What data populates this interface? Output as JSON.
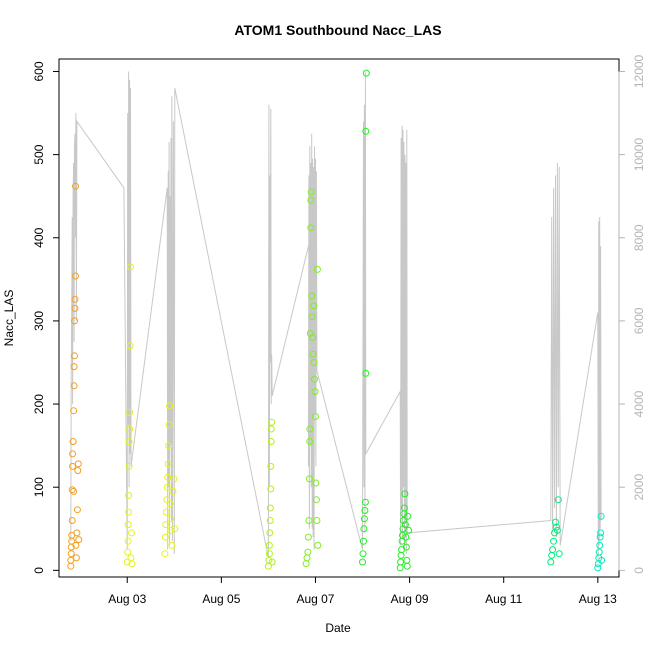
{
  "chart_data": {
    "type": "scatter",
    "title": "ATOM1 Southbound Nacc_LAS",
    "xlabel": "Date",
    "ylabel": "Nacc_LAS",
    "x_unit": "days in August",
    "xlim": [
      1.55,
      13.45
    ],
    "ylim": [
      -8,
      615
    ],
    "y2lim": [
      -160,
      12300
    ],
    "x_ticks": [
      {
        "x": 3,
        "label": "Aug 03"
      },
      {
        "x": 5,
        "label": "Aug 05"
      },
      {
        "x": 7,
        "label": "Aug 07"
      },
      {
        "x": 9,
        "label": "Aug 09"
      },
      {
        "x": 11,
        "label": "Aug 11"
      },
      {
        "x": 13,
        "label": "Aug 13"
      }
    ],
    "y_ticks": [
      0,
      100,
      200,
      300,
      400,
      500,
      600
    ],
    "y2_ticks": [
      0,
      2000,
      4000,
      6000,
      8000,
      10000,
      12000
    ],
    "grid": false,
    "legend": "none",
    "colors": {
      "line": "#c8c8c8",
      "right_axis": "#b4b4b4",
      "groups": [
        "#f5a020",
        "#e6f21e",
        "#b4f01e",
        "#7ef01e",
        "#20f020",
        "#00ee7a",
        "#00eebc"
      ]
    },
    "points": [
      {
        "x": 1.8,
        "y": 5,
        "c": 0
      },
      {
        "x": 1.8,
        "y": 12,
        "c": 0
      },
      {
        "x": 1.81,
        "y": 20,
        "c": 0
      },
      {
        "x": 1.81,
        "y": 28,
        "c": 0
      },
      {
        "x": 1.82,
        "y": 35,
        "c": 0
      },
      {
        "x": 1.82,
        "y": 42,
        "c": 0
      },
      {
        "x": 1.83,
        "y": 60,
        "c": 0
      },
      {
        "x": 1.83,
        "y": 97,
        "c": 0
      },
      {
        "x": 1.84,
        "y": 125,
        "c": 0
      },
      {
        "x": 1.84,
        "y": 140,
        "c": 0
      },
      {
        "x": 1.85,
        "y": 155,
        "c": 0
      },
      {
        "x": 1.86,
        "y": 95,
        "c": 0
      },
      {
        "x": 1.86,
        "y": 192,
        "c": 0
      },
      {
        "x": 1.87,
        "y": 222,
        "c": 0
      },
      {
        "x": 1.87,
        "y": 245,
        "c": 0
      },
      {
        "x": 1.88,
        "y": 258,
        "c": 0
      },
      {
        "x": 1.88,
        "y": 300,
        "c": 0
      },
      {
        "x": 1.89,
        "y": 315,
        "c": 0
      },
      {
        "x": 1.89,
        "y": 326,
        "c": 0
      },
      {
        "x": 1.9,
        "y": 354,
        "c": 0
      },
      {
        "x": 1.9,
        "y": 462,
        "c": 0
      },
      {
        "x": 1.91,
        "y": 30,
        "c": 0
      },
      {
        "x": 1.92,
        "y": 15,
        "c": 0
      },
      {
        "x": 1.93,
        "y": 45,
        "c": 0
      },
      {
        "x": 1.94,
        "y": 73,
        "c": 0
      },
      {
        "x": 1.95,
        "y": 120,
        "c": 0
      },
      {
        "x": 1.96,
        "y": 128,
        "c": 0
      },
      {
        "x": 1.97,
        "y": 37,
        "c": 0
      },
      {
        "x": 3.0,
        "y": 10,
        "c": 1
      },
      {
        "x": 3.01,
        "y": 22,
        "c": 1
      },
      {
        "x": 3.02,
        "y": 35,
        "c": 1
      },
      {
        "x": 3.02,
        "y": 55,
        "c": 1
      },
      {
        "x": 3.03,
        "y": 70,
        "c": 1
      },
      {
        "x": 3.03,
        "y": 90,
        "c": 1
      },
      {
        "x": 3.04,
        "y": 125,
        "c": 1
      },
      {
        "x": 3.04,
        "y": 155,
        "c": 1
      },
      {
        "x": 3.05,
        "y": 170,
        "c": 1
      },
      {
        "x": 3.05,
        "y": 190,
        "c": 1
      },
      {
        "x": 3.06,
        "y": 270,
        "c": 1
      },
      {
        "x": 3.07,
        "y": 365,
        "c": 1
      },
      {
        "x": 3.08,
        "y": 15,
        "c": 1
      },
      {
        "x": 3.09,
        "y": 45,
        "c": 1
      },
      {
        "x": 3.1,
        "y": 8,
        "c": 1
      },
      {
        "x": 3.8,
        "y": 20,
        "c": 1
      },
      {
        "x": 3.81,
        "y": 40,
        "c": 1
      },
      {
        "x": 3.82,
        "y": 55,
        "c": 1
      },
      {
        "x": 3.83,
        "y": 70,
        "c": 1
      },
      {
        "x": 3.84,
        "y": 85,
        "c": 1
      },
      {
        "x": 3.85,
        "y": 100,
        "c": 1
      },
      {
        "x": 3.86,
        "y": 112,
        "c": 1
      },
      {
        "x": 3.87,
        "y": 128,
        "c": 1
      },
      {
        "x": 3.88,
        "y": 150,
        "c": 1
      },
      {
        "x": 3.89,
        "y": 175,
        "c": 1
      },
      {
        "x": 3.9,
        "y": 198,
        "c": 1
      },
      {
        "x": 3.91,
        "y": 80,
        "c": 1
      },
      {
        "x": 3.92,
        "y": 62,
        "c": 1
      },
      {
        "x": 3.93,
        "y": 48,
        "c": 1
      },
      {
        "x": 3.95,
        "y": 30,
        "c": 1
      },
      {
        "x": 3.97,
        "y": 95,
        "c": 1
      },
      {
        "x": 3.99,
        "y": 110,
        "c": 1
      },
      {
        "x": 4.01,
        "y": 50,
        "c": 1
      },
      {
        "x": 6.0,
        "y": 5,
        "c": 2
      },
      {
        "x": 6.01,
        "y": 12,
        "c": 2
      },
      {
        "x": 6.02,
        "y": 20,
        "c": 2
      },
      {
        "x": 6.02,
        "y": 30,
        "c": 2
      },
      {
        "x": 6.03,
        "y": 45,
        "c": 2
      },
      {
        "x": 6.04,
        "y": 60,
        "c": 2
      },
      {
        "x": 6.04,
        "y": 75,
        "c": 2
      },
      {
        "x": 6.05,
        "y": 98,
        "c": 2
      },
      {
        "x": 6.05,
        "y": 125,
        "c": 2
      },
      {
        "x": 6.06,
        "y": 155,
        "c": 2
      },
      {
        "x": 6.06,
        "y": 170,
        "c": 2
      },
      {
        "x": 6.07,
        "y": 178,
        "c": 2
      },
      {
        "x": 6.08,
        "y": 10,
        "c": 2
      },
      {
        "x": 6.8,
        "y": 8,
        "c": 3
      },
      {
        "x": 6.82,
        "y": 15,
        "c": 3
      },
      {
        "x": 6.84,
        "y": 22,
        "c": 3
      },
      {
        "x": 6.85,
        "y": 40,
        "c": 3
      },
      {
        "x": 6.86,
        "y": 60,
        "c": 3
      },
      {
        "x": 6.87,
        "y": 110,
        "c": 3
      },
      {
        "x": 6.88,
        "y": 155,
        "c": 3
      },
      {
        "x": 6.88,
        "y": 170,
        "c": 3
      },
      {
        "x": 6.89,
        "y": 285,
        "c": 3
      },
      {
        "x": 6.9,
        "y": 412,
        "c": 3
      },
      {
        "x": 6.9,
        "y": 445,
        "c": 3
      },
      {
        "x": 6.91,
        "y": 455,
        "c": 3
      },
      {
        "x": 6.92,
        "y": 330,
        "c": 3
      },
      {
        "x": 6.93,
        "y": 305,
        "c": 3
      },
      {
        "x": 6.94,
        "y": 280,
        "c": 3
      },
      {
        "x": 6.95,
        "y": 260,
        "c": 3
      },
      {
        "x": 6.96,
        "y": 318,
        "c": 3
      },
      {
        "x": 6.97,
        "y": 250,
        "c": 3
      },
      {
        "x": 6.98,
        "y": 230,
        "c": 3
      },
      {
        "x": 6.99,
        "y": 215,
        "c": 3
      },
      {
        "x": 7.0,
        "y": 185,
        "c": 3
      },
      {
        "x": 7.01,
        "y": 105,
        "c": 3
      },
      {
        "x": 7.02,
        "y": 85,
        "c": 3
      },
      {
        "x": 7.03,
        "y": 60,
        "c": 3
      },
      {
        "x": 7.04,
        "y": 362,
        "c": 3
      },
      {
        "x": 7.05,
        "y": 30,
        "c": 3
      },
      {
        "x": 8.0,
        "y": 10,
        "c": 4
      },
      {
        "x": 8.01,
        "y": 20,
        "c": 4
      },
      {
        "x": 8.02,
        "y": 35,
        "c": 4
      },
      {
        "x": 8.03,
        "y": 50,
        "c": 4
      },
      {
        "x": 8.04,
        "y": 62,
        "c": 4
      },
      {
        "x": 8.05,
        "y": 72,
        "c": 4
      },
      {
        "x": 8.06,
        "y": 82,
        "c": 4
      },
      {
        "x": 8.07,
        "y": 237,
        "c": 4
      },
      {
        "x": 8.07,
        "y": 528,
        "c": 4
      },
      {
        "x": 8.08,
        "y": 598,
        "c": 4
      },
      {
        "x": 8.8,
        "y": 3,
        "c": 4
      },
      {
        "x": 8.81,
        "y": 10,
        "c": 4
      },
      {
        "x": 8.82,
        "y": 18,
        "c": 4
      },
      {
        "x": 8.83,
        "y": 25,
        "c": 4
      },
      {
        "x": 8.84,
        "y": 35,
        "c": 4
      },
      {
        "x": 8.85,
        "y": 42,
        "c": 4
      },
      {
        "x": 8.86,
        "y": 50,
        "c": 4
      },
      {
        "x": 8.87,
        "y": 60,
        "c": 4
      },
      {
        "x": 8.88,
        "y": 68,
        "c": 4
      },
      {
        "x": 8.89,
        "y": 75,
        "c": 4
      },
      {
        "x": 8.9,
        "y": 92,
        "c": 4
      },
      {
        "x": 8.91,
        "y": 55,
        "c": 4
      },
      {
        "x": 8.92,
        "y": 40,
        "c": 4
      },
      {
        "x": 8.93,
        "y": 28,
        "c": 4
      },
      {
        "x": 8.94,
        "y": 12,
        "c": 4
      },
      {
        "x": 8.95,
        "y": 5,
        "c": 4
      },
      {
        "x": 8.96,
        "y": 65,
        "c": 4
      },
      {
        "x": 8.98,
        "y": 48,
        "c": 4
      },
      {
        "x": 12.0,
        "y": 10,
        "c": 5
      },
      {
        "x": 12.02,
        "y": 18,
        "c": 5
      },
      {
        "x": 12.04,
        "y": 25,
        "c": 5
      },
      {
        "x": 12.06,
        "y": 35,
        "c": 5
      },
      {
        "x": 12.08,
        "y": 45,
        "c": 5
      },
      {
        "x": 12.1,
        "y": 58,
        "c": 5
      },
      {
        "x": 12.12,
        "y": 52,
        "c": 5
      },
      {
        "x": 12.14,
        "y": 48,
        "c": 5
      },
      {
        "x": 12.16,
        "y": 85,
        "c": 5
      },
      {
        "x": 12.18,
        "y": 20,
        "c": 5
      },
      {
        "x": 13.0,
        "y": 3,
        "c": 6
      },
      {
        "x": 13.01,
        "y": 8,
        "c": 6
      },
      {
        "x": 13.02,
        "y": 15,
        "c": 6
      },
      {
        "x": 13.03,
        "y": 22,
        "c": 6
      },
      {
        "x": 13.04,
        "y": 30,
        "c": 6
      },
      {
        "x": 13.05,
        "y": 40,
        "c": 6
      },
      {
        "x": 13.06,
        "y": 45,
        "c": 6
      },
      {
        "x": 13.07,
        "y": 65,
        "c": 6
      },
      {
        "x": 13.08,
        "y": 12,
        "c": 6
      }
    ],
    "line_series": [
      [
        1.8,
        700
      ],
      [
        1.81,
        4800
      ],
      [
        1.82,
        6200
      ],
      [
        1.83,
        8500
      ],
      [
        1.84,
        4000
      ],
      [
        1.85,
        9000
      ],
      [
        1.86,
        9800
      ],
      [
        1.87,
        5500
      ],
      [
        1.88,
        10200
      ],
      [
        1.89,
        10500
      ],
      [
        1.9,
        8000
      ],
      [
        1.91,
        11000
      ],
      [
        1.92,
        6000
      ],
      [
        1.93,
        10800
      ],
      [
        2.93,
        9200
      ],
      [
        3.0,
        500
      ],
      [
        3.01,
        11000
      ],
      [
        3.02,
        3500
      ],
      [
        3.03,
        12000
      ],
      [
        3.04,
        2000
      ],
      [
        3.05,
        11800
      ],
      [
        3.06,
        2800
      ],
      [
        3.07,
        11600
      ],
      [
        3.08,
        2500
      ],
      [
        3.85,
        9200
      ],
      [
        3.86,
        500
      ],
      [
        3.87,
        9600
      ],
      [
        3.88,
        2000
      ],
      [
        3.89,
        10300
      ],
      [
        3.9,
        600
      ],
      [
        3.91,
        9000
      ],
      [
        3.92,
        3000
      ],
      [
        3.93,
        10400
      ],
      [
        3.94,
        1200
      ],
      [
        3.95,
        11400
      ],
      [
        3.96,
        700
      ],
      [
        3.98,
        10800
      ],
      [
        4.0,
        400
      ],
      [
        4.01,
        11600
      ],
      [
        6.0,
        300
      ],
      [
        6.01,
        11200
      ],
      [
        6.02,
        2000
      ],
      [
        6.03,
        9500
      ],
      [
        6.04,
        5000
      ],
      [
        6.05,
        11100
      ],
      [
        6.06,
        4000
      ],
      [
        6.07,
        5200
      ],
      [
        6.08,
        4200
      ],
      [
        7.0,
        8500
      ],
      [
        6.85,
        2500
      ],
      [
        6.86,
        9500
      ],
      [
        6.87,
        1000
      ],
      [
        6.88,
        10200
      ],
      [
        6.89,
        3000
      ],
      [
        6.9,
        9800
      ],
      [
        6.91,
        2000
      ],
      [
        6.92,
        10500
      ],
      [
        6.93,
        1000
      ],
      [
        6.94,
        9900
      ],
      [
        6.95,
        800
      ],
      [
        6.96,
        9700
      ],
      [
        6.97,
        500
      ],
      [
        6.98,
        10200
      ],
      [
        6.99,
        3800
      ],
      [
        7.0,
        9900
      ],
      [
        7.01,
        2500
      ],
      [
        7.02,
        9600
      ],
      [
        7.03,
        4800
      ],
      [
        8.0,
        500
      ],
      [
        8.02,
        10800
      ],
      [
        8.03,
        2000
      ],
      [
        8.04,
        11200
      ],
      [
        8.05,
        900
      ],
      [
        8.06,
        12000
      ],
      [
        8.07,
        2800
      ],
      [
        8.8,
        4300
      ],
      [
        8.81,
        600
      ],
      [
        8.82,
        10400
      ],
      [
        8.83,
        1500
      ],
      [
        8.84,
        10700
      ],
      [
        8.85,
        800
      ],
      [
        8.86,
        10600
      ],
      [
        8.87,
        2000
      ],
      [
        8.88,
        10300
      ],
      [
        8.89,
        500
      ],
      [
        8.9,
        10000
      ],
      [
        8.91,
        1200
      ],
      [
        8.92,
        9800
      ],
      [
        8.93,
        400
      ],
      [
        8.94,
        10600
      ],
      [
        8.95,
        900
      ],
      [
        12.0,
        1200
      ],
      [
        12.02,
        8500
      ],
      [
        12.04,
        900
      ],
      [
        12.06,
        9200
      ],
      [
        12.08,
        1500
      ],
      [
        12.1,
        9500
      ],
      [
        12.12,
        800
      ],
      [
        12.14,
        9800
      ],
      [
        12.16,
        2000
      ],
      [
        12.18,
        9700
      ],
      [
        12.2,
        600
      ],
      [
        13.0,
        6200
      ],
      [
        13.01,
        300
      ],
      [
        13.02,
        8400
      ],
      [
        13.03,
        600
      ],
      [
        13.04,
        8500
      ],
      [
        13.05,
        1000
      ],
      [
        13.06,
        7800
      ],
      [
        13.07,
        1200
      ]
    ]
  }
}
